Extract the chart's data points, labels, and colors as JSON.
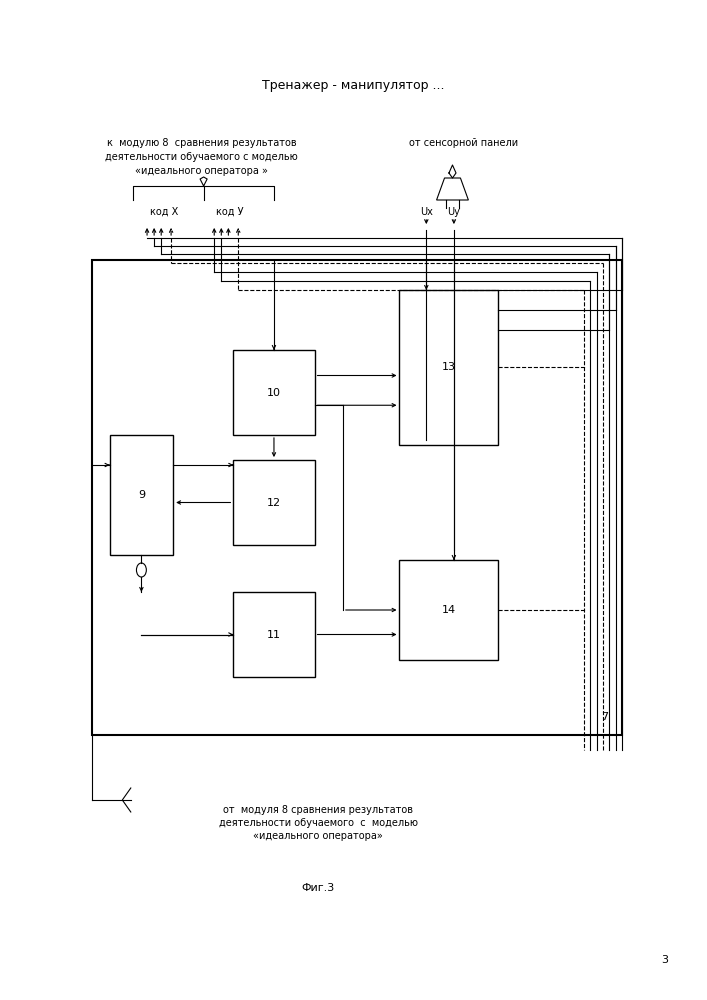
{
  "title": "Тренажер - манипулятор ...",
  "fig_label": "Фиг.3",
  "page_num": "3",
  "top_left_label_lines": [
    "к  модулю 8  сравнения результатов",
    "деятельности обучаемого с моделью",
    "«идеального оператора »"
  ],
  "top_right_label": "от сенсорной панели",
  "bottom_label_lines": [
    "от  модуля 8 сравнения результатов",
    "деятельности обучаемого  с  моделью",
    "«идеального оператора»"
  ],
  "kod_x_label": "код Х",
  "kod_y_label": "код У",
  "ux_label": "Ux",
  "uy_label": "Uy",
  "box7_label": "7",
  "box9_label": "9",
  "box10_label": "10",
  "box11_label": "11",
  "box12_label": "12",
  "box13_label": "13",
  "box14_label": "14"
}
